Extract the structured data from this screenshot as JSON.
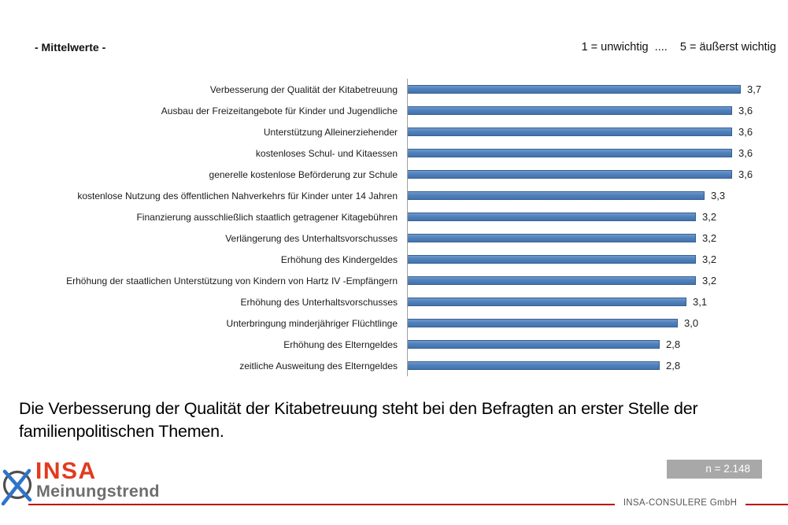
{
  "header": {
    "left_label": "- Mittelwerte -",
    "scale_note": "1 = unwichtig  ....    5 = äußerst wichtig"
  },
  "chart_data": {
    "type": "bar",
    "orientation": "horizontal",
    "title": "- Mittelwerte -",
    "scale_note": "1 = unwichtig .... 5 = äußerst wichtig",
    "xlim": [
      0,
      4
    ],
    "grid": false,
    "legend": false,
    "bar_color": "#4f81bd",
    "categories": [
      "Verbesserung der Qualität der Kitabetreuung",
      "Ausbau der Freizeitangebote für Kinder und Jugendliche",
      "Unterstützung Alleinerziehender",
      "kostenloses Schul- und Kitaessen",
      "generelle kostenlose Beförderung zur Schule",
      "kostenlose Nutzung des öffentlichen Nahverkehrs für Kinder unter 14 Jahren",
      "Finanzierung ausschließlich staatlich getragener Kitagebühren",
      "Verlängerung des Unterhaltsvorschusses",
      "Erhöhung des Kindergeldes",
      "Erhöhung der staatlichen Unterstützung von Kindern von Hartz IV -Empfängern",
      "Erhöhung des Unterhaltsvorschusses",
      "Unterbringung minderjähriger Flüchtlinge",
      "Erhöhung des Elterngeldes",
      "zeitliche Ausweitung des Elterngeldes"
    ],
    "values": [
      3.7,
      3.6,
      3.6,
      3.6,
      3.6,
      3.3,
      3.2,
      3.2,
      3.2,
      3.2,
      3.1,
      3.0,
      2.8,
      2.8
    ],
    "value_labels": [
      "3,7",
      "3,6",
      "3,6",
      "3,6",
      "3,6",
      "3,3",
      "3,2",
      "3,2",
      "3,2",
      "3,2",
      "3,1",
      "3,0",
      "2,8",
      "2,8"
    ]
  },
  "summary": "Die Verbesserung der Qualität der Kitabetreuung steht bei den Befragten an erster Stelle der familienpolitischen Themen.",
  "footer": {
    "sample_badge": "n = 2.148",
    "company": "INSA-CONSULERE GmbH",
    "logo_title": "INSA",
    "logo_subtitle": "Meinungstrend"
  },
  "colors": {
    "bar": "#4f81bd",
    "bar_border": "#386094",
    "axis": "#a0a0a0",
    "badge_bg": "#a8a8a8",
    "red_line": "#c00000",
    "logo_red": "#e23a1e",
    "logo_gray": "#6e6e6e"
  }
}
